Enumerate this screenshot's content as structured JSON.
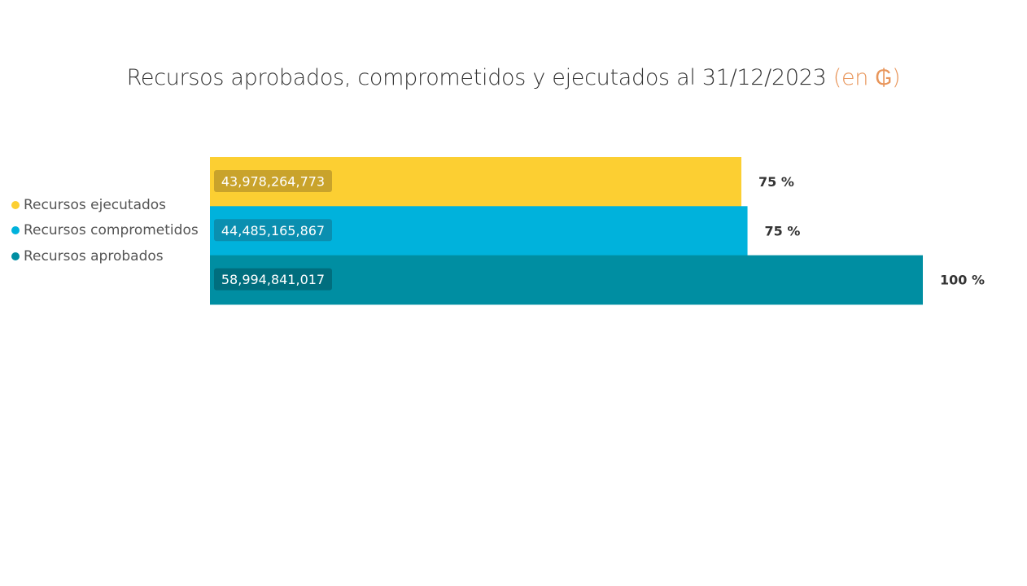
{
  "title": {
    "main": "Recursos aprobados, comprometidos y ejecutados al 31/12/2023 ",
    "unit": "(en ₲)"
  },
  "legend": [
    {
      "label": "Recursos ejecutados",
      "color": "#fccf32"
    },
    {
      "label": "Recursos comprometidos",
      "color": "#00b2dc"
    },
    {
      "label": "Recursos aprobados",
      "color": "#008ea2"
    }
  ],
  "chart_data": {
    "type": "bar",
    "orientation": "horizontal",
    "title": "Recursos aprobados, comprometidos y ejecutados al 31/12/2023 (en ₲)",
    "categories": [
      "Recursos ejecutados",
      "Recursos comprometidos",
      "Recursos aprobados"
    ],
    "values": [
      43978264773,
      44485165867,
      58994841017
    ],
    "value_labels": [
      "43,978,264,773",
      "44,485,165,867",
      "58,994,841,017"
    ],
    "percent_labels": [
      "75 %",
      "75 %",
      "100 %"
    ],
    "colors": [
      "#fccf32",
      "#00b2dc",
      "#008ea2"
    ],
    "label_box_colors": [
      "#c9a32b",
      "#0a8fb0",
      "#006e7e"
    ],
    "legend_position": "left",
    "grid": false
  }
}
